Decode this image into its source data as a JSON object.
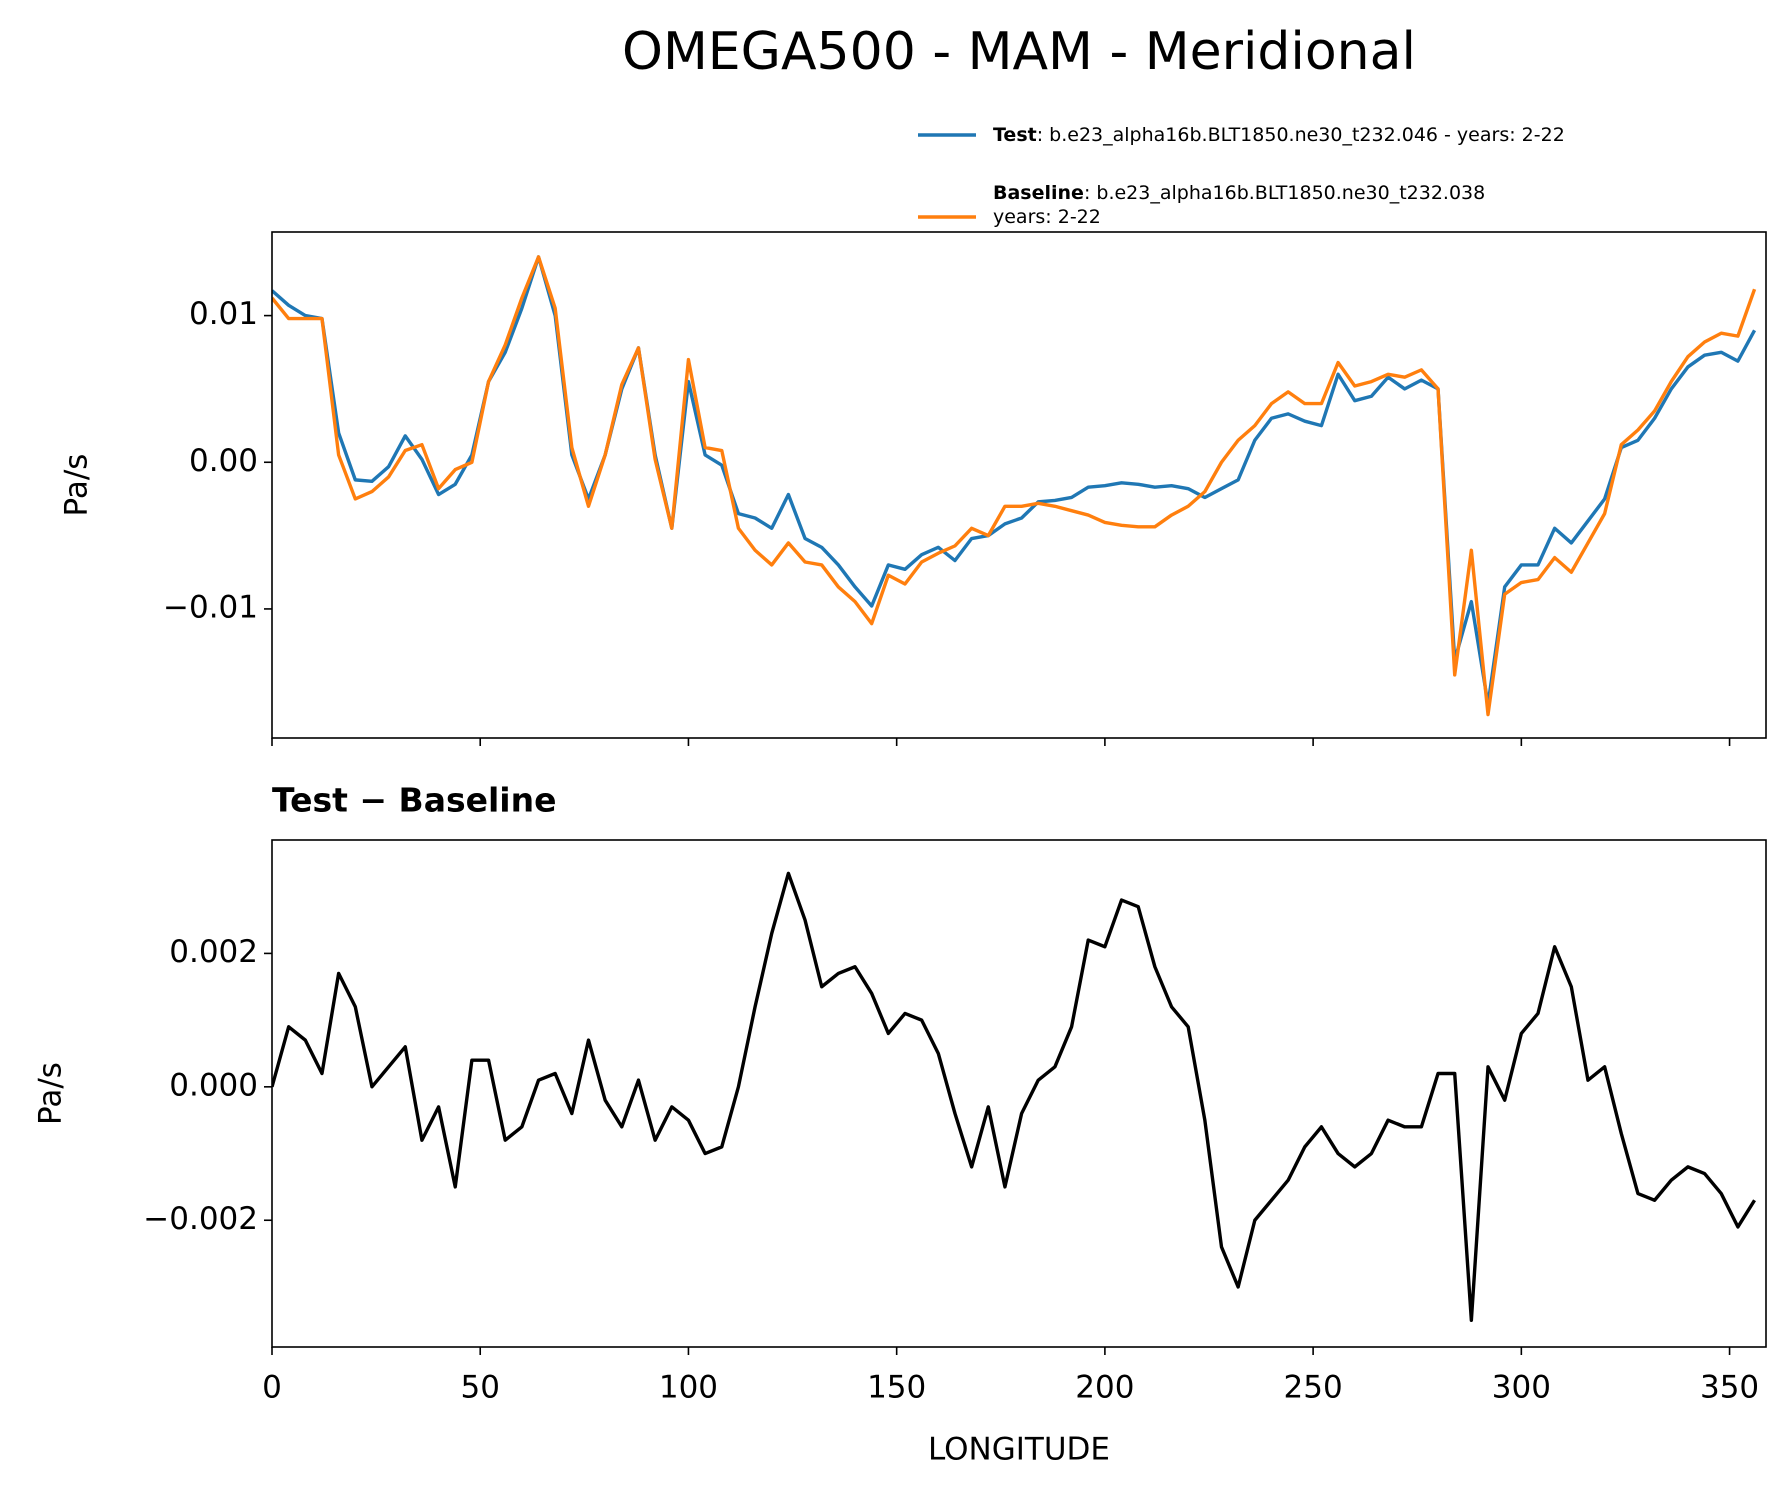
{
  "title": "OMEGA500 - MAM - Meridional",
  "chart_data": [
    {
      "type": "line",
      "ylabel": "Pa/s",
      "x": [
        0,
        4,
        8,
        12,
        16,
        20,
        24,
        28,
        32,
        36,
        40,
        44,
        48,
        52,
        56,
        60,
        64,
        68,
        72,
        76,
        80,
        84,
        88,
        92,
        96,
        100,
        104,
        108,
        112,
        116,
        120,
        124,
        128,
        132,
        136,
        140,
        144,
        148,
        152,
        156,
        160,
        164,
        168,
        172,
        176,
        180,
        184,
        188,
        192,
        196,
        200,
        204,
        208,
        212,
        216,
        220,
        224,
        228,
        232,
        236,
        240,
        244,
        248,
        252,
        256,
        260,
        264,
        268,
        272,
        276,
        280,
        284,
        288,
        292,
        296,
        300,
        304,
        308,
        312,
        316,
        320,
        324,
        328,
        332,
        336,
        340,
        344,
        348,
        352,
        356
      ],
      "xlim": [
        0,
        358.75
      ],
      "xticks": [
        0,
        50,
        100,
        150,
        200,
        250,
        300,
        350
      ],
      "xtick_labels": false,
      "ylim": [
        -0.0188,
        0.0157
      ],
      "yticks": [
        {
          "value": -0.01,
          "label": "−0.01"
        },
        {
          "value": 0,
          "label": "0.00"
        },
        {
          "value": 0.01,
          "label": "0.01"
        }
      ],
      "legend": "upper right",
      "series": [
        {
          "name": "Test",
          "description": [
            ": b.e23_alpha16b.BLT1850.ne30_t232.046 - years: 2-22"
          ],
          "color": "#1f77b4",
          "values": [
            0.0117,
            0.0107,
            0.01,
            0.0098,
            0.002,
            -0.0012,
            -0.0013,
            -0.0003,
            0.0018,
            0.0002,
            -0.0022,
            -0.0015,
            0.0005,
            0.0055,
            0.0075,
            0.0105,
            0.014,
            0.01,
            0.0005,
            -0.0025,
            0.0005,
            0.005,
            0.0078,
            0.0005,
            -0.0045,
            0.0055,
            0.0005,
            -0.0002,
            -0.0035,
            -0.0038,
            -0.0045,
            -0.0022,
            -0.0052,
            -0.0058,
            -0.007,
            -0.0085,
            -0.0098,
            -0.007,
            -0.0073,
            -0.0063,
            -0.0058,
            -0.0067,
            -0.0052,
            -0.005,
            -0.0042,
            -0.0038,
            -0.0027,
            -0.0026,
            -0.0024,
            -0.0017,
            -0.0016,
            -0.0014,
            -0.0015,
            -0.0017,
            -0.0016,
            -0.0018,
            -0.0024,
            -0.0018,
            -0.0012,
            0.0015,
            0.003,
            0.0033,
            0.0028,
            0.0025,
            0.006,
            0.0042,
            0.0045,
            0.0058,
            0.005,
            0.0056,
            0.005,
            -0.0135,
            -0.0095,
            -0.0165,
            -0.0085,
            -0.007,
            -0.007,
            -0.0045,
            -0.0055,
            -0.004,
            -0.0025,
            0.001,
            0.0015,
            0.003,
            0.005,
            0.0065,
            0.0073,
            0.0075,
            0.0069,
            0.009
          ]
        },
        {
          "name": "Baseline",
          "description": [
            ": b.e23_alpha16b.BLT1850.ne30_t232.038",
            "years: 2-22"
          ],
          "color": "#ff7f0e",
          "values": [
            0.0112,
            0.0098,
            0.0098,
            0.0098,
            0.0005,
            -0.0025,
            -0.002,
            -0.001,
            0.0008,
            0.0012,
            -0.0018,
            -0.0005,
            0.0,
            0.0055,
            0.008,
            0.0112,
            0.014,
            0.0105,
            0.001,
            -0.003,
            0.0005,
            0.0053,
            0.0078,
            0.0002,
            -0.0045,
            0.007,
            0.001,
            0.0008,
            -0.0045,
            -0.006,
            -0.007,
            -0.0055,
            -0.0068,
            -0.007,
            -0.0085,
            -0.0095,
            -0.011,
            -0.0077,
            -0.0083,
            -0.0068,
            -0.0062,
            -0.0057,
            -0.0045,
            -0.005,
            -0.003,
            -0.003,
            -0.0028,
            -0.003,
            -0.0033,
            -0.0036,
            -0.0041,
            -0.0043,
            -0.0044,
            -0.0044,
            -0.0036,
            -0.003,
            -0.002,
            0.0,
            0.0015,
            0.0025,
            0.004,
            0.0048,
            0.004,
            0.004,
            0.0068,
            0.0052,
            0.0055,
            0.006,
            0.0058,
            0.0063,
            0.005,
            -0.0145,
            -0.006,
            -0.0172,
            -0.009,
            -0.0082,
            -0.008,
            -0.0065,
            -0.0075,
            -0.0055,
            -0.0035,
            0.0012,
            0.0022,
            0.0035,
            0.0055,
            0.0072,
            0.0082,
            0.0088,
            0.0086,
            0.0118
          ]
        }
      ]
    },
    {
      "type": "line",
      "title": "Test − Baseline",
      "xlabel": "LONGITUDE",
      "ylabel": "Pa/s",
      "x": [
        0,
        4,
        8,
        12,
        16,
        20,
        24,
        28,
        32,
        36,
        40,
        44,
        48,
        52,
        56,
        60,
        64,
        68,
        72,
        76,
        80,
        84,
        88,
        92,
        96,
        100,
        104,
        108,
        112,
        116,
        120,
        124,
        128,
        132,
        136,
        140,
        144,
        148,
        152,
        156,
        160,
        164,
        168,
        172,
        176,
        180,
        184,
        188,
        192,
        196,
        200,
        204,
        208,
        212,
        216,
        220,
        224,
        228,
        232,
        236,
        240,
        244,
        248,
        252,
        256,
        260,
        264,
        268,
        272,
        276,
        280,
        284,
        288,
        292,
        296,
        300,
        304,
        308,
        312,
        316,
        320,
        324,
        328,
        332,
        336,
        340,
        344,
        348,
        352,
        356
      ],
      "xlim": [
        0,
        358.75
      ],
      "xticks": [
        0,
        50,
        100,
        150,
        200,
        250,
        300,
        350
      ],
      "xtick_labels": true,
      "ylim": [
        -0.0039,
        0.0037
      ],
      "yticks": [
        {
          "value": -0.002,
          "label": "−0.002"
        },
        {
          "value": 0,
          "label": "0.000"
        },
        {
          "value": 0.002,
          "label": "0.002"
        }
      ],
      "series": [
        {
          "color": "#000000",
          "values": [
            0.0,
            0.0009,
            0.0007,
            0.0002,
            0.0017,
            0.0012,
            0.0,
            0.0003,
            0.0006,
            -0.0008,
            -0.0003,
            -0.0015,
            0.0004,
            0.0004,
            -0.0008,
            -0.0006,
            0.0001,
            0.0002,
            -0.0004,
            0.0007,
            -0.0002,
            -0.0006,
            0.0001,
            -0.0008,
            -0.0003,
            -0.0005,
            -0.001,
            -0.0009,
            0.0,
            0.0012,
            0.0023,
            0.0032,
            0.0025,
            0.0015,
            0.0017,
            0.0018,
            0.0014,
            0.0008,
            0.0011,
            0.001,
            0.0005,
            -0.0004,
            -0.0012,
            -0.0003,
            -0.0015,
            -0.0004,
            0.0001,
            0.0003,
            0.0009,
            0.0022,
            0.0021,
            0.0028,
            0.0027,
            0.0018,
            0.0012,
            0.0009,
            -0.0005,
            -0.0024,
            -0.003,
            -0.002,
            -0.0017,
            -0.0014,
            -0.0009,
            -0.0006,
            -0.001,
            -0.0012,
            -0.001,
            -0.0005,
            -0.0006,
            -0.0006,
            0.0002,
            0.0002,
            -0.0035,
            0.0003,
            -0.0002,
            0.0008,
            0.0011,
            0.0021,
            0.0015,
            0.0001,
            0.0003,
            -0.0007,
            -0.0016,
            -0.0017,
            -0.0014,
            -0.0012,
            -0.0013,
            -0.0016,
            -0.0021,
            -0.0017
          ]
        }
      ]
    }
  ]
}
